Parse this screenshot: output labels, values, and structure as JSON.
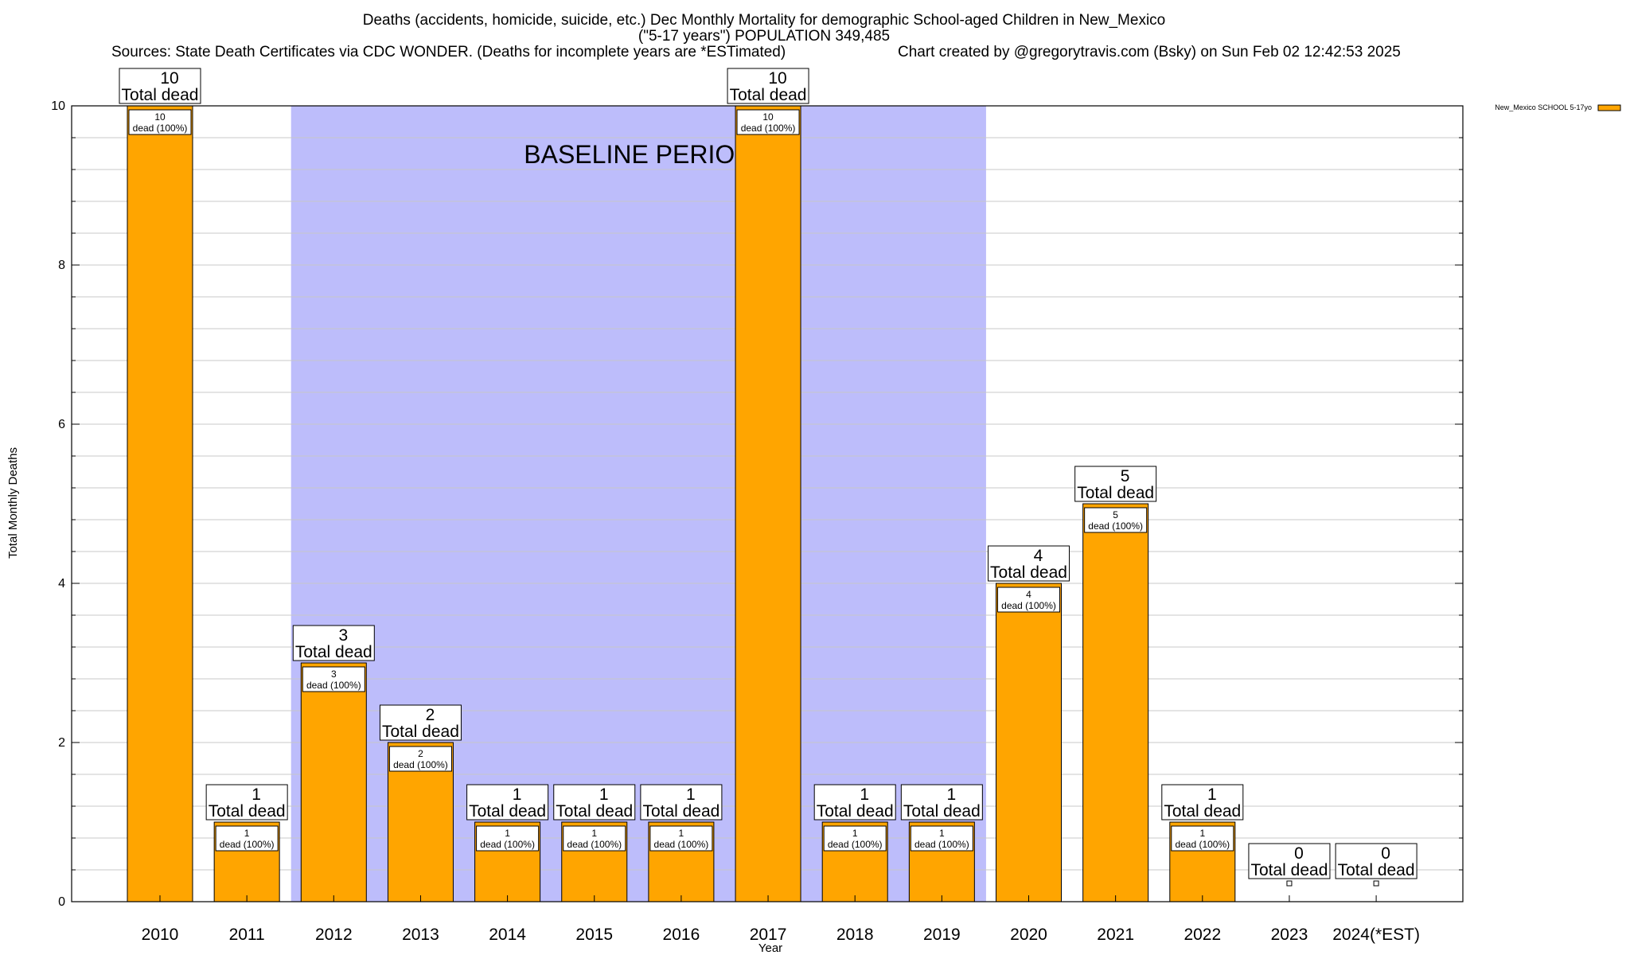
{
  "title": {
    "line1": "Deaths (accidents, homicide, suicide, etc.) Dec Monthly Mortality for demographic School-aged Children in New_Mexico",
    "line2": "(\"5-17 years\") POPULATION 349,485",
    "line3_left": "Sources: State Death Certificates via CDC WONDER. (Deaths for incomplete years are *ESTimated)",
    "line3_right": "Chart created by @gregorytravis.com (Bsky) on Sun Feb 02 12:42:53 2025"
  },
  "colors": {
    "bar": "#ffa500",
    "band": "#bdbdfb",
    "grid": "#c8c8c8"
  },
  "chart_data": {
    "type": "bar",
    "categories": [
      "2010",
      "2011",
      "2012",
      "2013",
      "2014",
      "2015",
      "2016",
      "2017",
      "2018",
      "2019",
      "2020",
      "2021",
      "2022",
      "2023",
      "2024(*EST)"
    ],
    "series": [
      {
        "name": "New_Mexico SCHOOL 5-17yo",
        "values": [
          10,
          1,
          3,
          2,
          1,
          1,
          1,
          10,
          1,
          1,
          4,
          5,
          1,
          0,
          0
        ]
      }
    ],
    "xlabel": "Year",
    "ylabel": "Total Monthly Deaths",
    "ylim": [
      0,
      10
    ],
    "yticks": [
      0,
      2,
      4,
      6,
      8,
      10
    ],
    "grid": true,
    "legend_position": "top-right",
    "total_label": "Total dead",
    "segment_label_suffix": "dead (100%)",
    "baseline_band": {
      "label": "BASELINE PERIOD",
      "from": "2012",
      "to": "2019"
    }
  }
}
